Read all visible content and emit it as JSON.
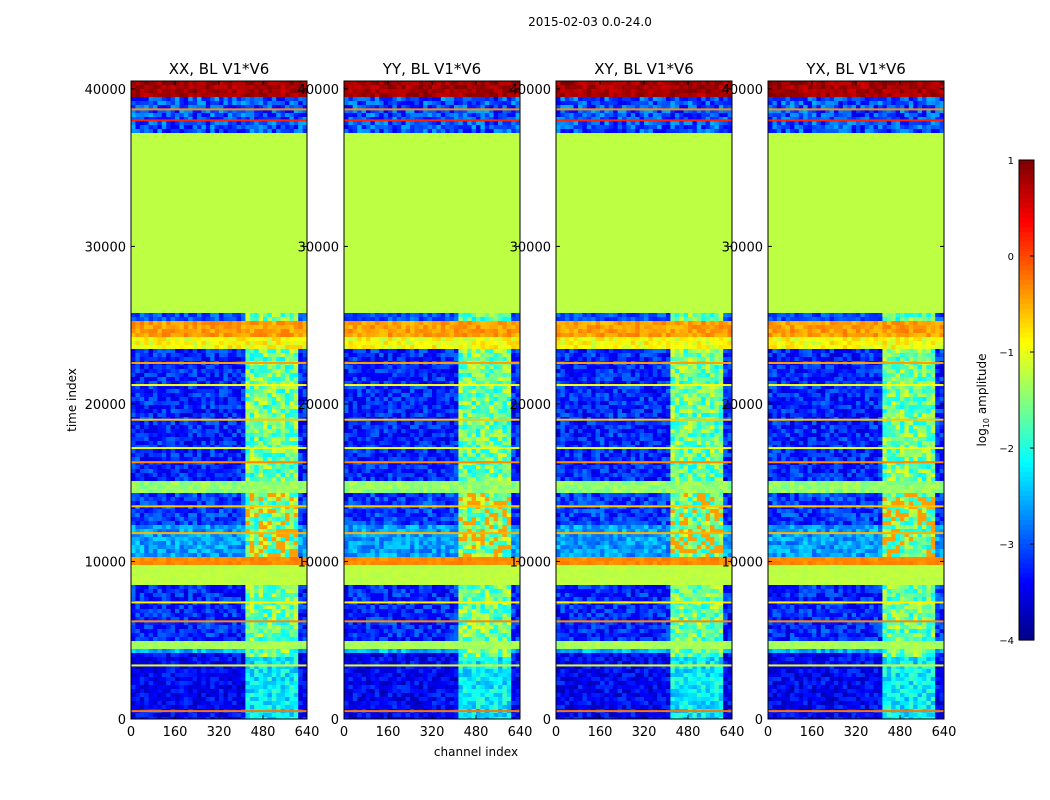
{
  "chart_data": {
    "type": "heatmap",
    "suptitle": "2015-02-03 0.0-24.0",
    "xlabel": "channel index",
    "ylabel": "time index",
    "xlim": [
      0,
      640
    ],
    "ylim": [
      0,
      40500
    ],
    "xticks": [
      0,
      160,
      320,
      480,
      640
    ],
    "yticks": [
      0,
      10000,
      20000,
      30000,
      40000
    ],
    "colorbar": {
      "label_main": "log",
      "label_sub": "10",
      "label_tail": " amplitude",
      "range": [
        -4,
        1
      ],
      "ticks": [
        1,
        0,
        -1,
        -2,
        -3,
        -4
      ],
      "tick_labels": [
        "1",
        "0",
        "−1",
        "−2",
        "−3",
        "−4"
      ],
      "colormap": "jet"
    },
    "panels": [
      {
        "title": "XX, BL V1*V6"
      },
      {
        "title": "YY, BL V1*V6"
      },
      {
        "title": "XY, BL V1*V6"
      },
      {
        "title": "YX, BL V1*V6"
      }
    ],
    "bands": [
      {
        "y0": 0,
        "y1": 4200,
        "level": -3.4,
        "noise": 0.35
      },
      {
        "y0": 4200,
        "y1": 4600,
        "level": -2.5,
        "noise": 0.3
      },
      {
        "y0": 4600,
        "y1": 5200,
        "level": -1.3,
        "noise": 0.1
      },
      {
        "y0": 5200,
        "y1": 8600,
        "level": -3.2,
        "noise": 0.4
      },
      {
        "y0": 8600,
        "y1": 10000,
        "level": -1.2,
        "noise": 0.05
      },
      {
        "y0": 10000,
        "y1": 10300,
        "level": -0.3,
        "noise": 0.1
      },
      {
        "y0": 10300,
        "y1": 12500,
        "level": -2.6,
        "noise": 0.35
      },
      {
        "y0": 12500,
        "y1": 14400,
        "level": -3.1,
        "noise": 0.4
      },
      {
        "y0": 14400,
        "y1": 15200,
        "level": -1.4,
        "noise": 0.2
      },
      {
        "y0": 15200,
        "y1": 23500,
        "level": -3.2,
        "noise": 0.4
      },
      {
        "y0": 23500,
        "y1": 24500,
        "level": -0.9,
        "noise": 0.3
      },
      {
        "y0": 24500,
        "y1": 25300,
        "level": -0.4,
        "noise": 0.2
      },
      {
        "y0": 25300,
        "y1": 26000,
        "level": -3.0,
        "noise": 0.3
      },
      {
        "y0": 26000,
        "y1": 37300,
        "level": -1.2,
        "noise": 0.0
      },
      {
        "y0": 37300,
        "y1": 39500,
        "level": -3.0,
        "noise": 0.5
      },
      {
        "y0": 39500,
        "y1": 40500,
        "level": 0.8,
        "noise": 0.2
      }
    ],
    "stripes": [
      {
        "y": 500,
        "level": -0.2
      },
      {
        "y": 3400,
        "level": -1.0
      },
      {
        "y": 6200,
        "level": -0.3
      },
      {
        "y": 7400,
        "level": -0.8
      },
      {
        "y": 11800,
        "level": -0.5
      },
      {
        "y": 13500,
        "level": -0.6
      },
      {
        "y": 16300,
        "level": -0.3
      },
      {
        "y": 17200,
        "level": -1.0
      },
      {
        "y": 19000,
        "level": -0.6
      },
      {
        "y": 21200,
        "level": -0.9
      },
      {
        "y": 22600,
        "level": -0.4
      },
      {
        "y": 38000,
        "level": 0.2
      },
      {
        "y": 38700,
        "level": -0.3
      }
    ],
    "rfi_channel_range": [
      410,
      600
    ],
    "rfi_level": -1.6
  }
}
